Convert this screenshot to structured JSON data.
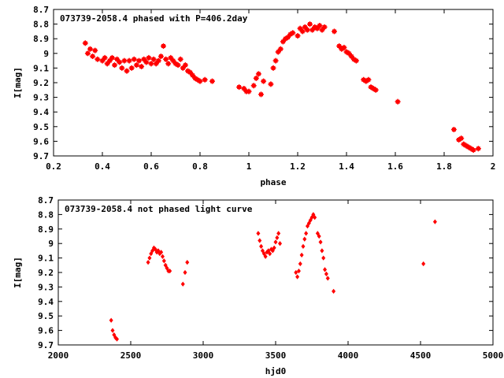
{
  "chart_data": [
    {
      "type": "scatter",
      "title": "073739-2058.4 phased with P=406.2day",
      "xlabel": "phase",
      "ylabel": "I[mag]",
      "xlim": [
        0.2,
        2
      ],
      "ylim": [
        8.7,
        9.7
      ],
      "y_inverted": true,
      "grid": false,
      "color": "#ff0000",
      "x_ticks": [
        "0.2",
        "0.4",
        "0.6",
        "0.8",
        "1",
        "1.2",
        "1.4",
        "1.6",
        "1.8",
        "2"
      ],
      "y_ticks": [
        "8.7",
        "8.8",
        "8.9",
        "9",
        "9.1",
        "9.2",
        "9.3",
        "9.4",
        "9.5",
        "9.6",
        "9.7"
      ],
      "points": [
        [
          0.33,
          8.93
        ],
        [
          0.34,
          9.0
        ],
        [
          0.35,
          8.97
        ],
        [
          0.36,
          9.02
        ],
        [
          0.37,
          8.98
        ],
        [
          0.38,
          9.04
        ],
        [
          0.4,
          9.05
        ],
        [
          0.41,
          9.03
        ],
        [
          0.42,
          9.07
        ],
        [
          0.43,
          9.05
        ],
        [
          0.44,
          9.03
        ],
        [
          0.45,
          9.08
        ],
        [
          0.46,
          9.04
        ],
        [
          0.47,
          9.06
        ],
        [
          0.48,
          9.1
        ],
        [
          0.49,
          9.05
        ],
        [
          0.5,
          9.12
        ],
        [
          0.51,
          9.05
        ],
        [
          0.52,
          9.1
        ],
        [
          0.53,
          9.04
        ],
        [
          0.54,
          9.08
        ],
        [
          0.55,
          9.05
        ],
        [
          0.56,
          9.09
        ],
        [
          0.57,
          9.04
        ],
        [
          0.58,
          9.06
        ],
        [
          0.59,
          9.03
        ],
        [
          0.6,
          9.07
        ],
        [
          0.61,
          9.04
        ],
        [
          0.62,
          9.07
        ],
        [
          0.63,
          9.05
        ],
        [
          0.64,
          9.02
        ],
        [
          0.65,
          8.95
        ],
        [
          0.66,
          9.04
        ],
        [
          0.67,
          9.07
        ],
        [
          0.68,
          9.03
        ],
        [
          0.69,
          9.05
        ],
        [
          0.7,
          9.07
        ],
        [
          0.71,
          9.08
        ],
        [
          0.72,
          9.04
        ],
        [
          0.73,
          9.1
        ],
        [
          0.74,
          9.08
        ],
        [
          0.75,
          9.12
        ],
        [
          0.76,
          9.13
        ],
        [
          0.77,
          9.15
        ],
        [
          0.78,
          9.17
        ],
        [
          0.79,
          9.18
        ],
        [
          0.8,
          9.19
        ],
        [
          0.82,
          9.18
        ],
        [
          0.85,
          9.19
        ],
        [
          0.96,
          9.23
        ],
        [
          0.98,
          9.24
        ],
        [
          0.99,
          9.26
        ],
        [
          1.0,
          9.26
        ],
        [
          1.02,
          9.22
        ],
        [
          1.03,
          9.17
        ],
        [
          1.04,
          9.14
        ],
        [
          1.05,
          9.28
        ],
        [
          1.06,
          9.19
        ],
        [
          1.09,
          9.21
        ],
        [
          1.1,
          9.1
        ],
        [
          1.11,
          9.05
        ],
        [
          1.12,
          8.99
        ],
        [
          1.13,
          8.97
        ],
        [
          1.14,
          8.92
        ],
        [
          1.15,
          8.9
        ],
        [
          1.16,
          8.89
        ],
        [
          1.17,
          8.87
        ],
        [
          1.18,
          8.86
        ],
        [
          1.2,
          8.88
        ],
        [
          1.21,
          8.83
        ],
        [
          1.22,
          8.85
        ],
        [
          1.23,
          8.82
        ],
        [
          1.24,
          8.84
        ],
        [
          1.25,
          8.8
        ],
        [
          1.26,
          8.84
        ],
        [
          1.27,
          8.82
        ],
        [
          1.28,
          8.83
        ],
        [
          1.29,
          8.81
        ],
        [
          1.3,
          8.84
        ],
        [
          1.31,
          8.82
        ],
        [
          1.35,
          8.85
        ],
        [
          1.37,
          8.95
        ],
        [
          1.38,
          8.97
        ],
        [
          1.39,
          8.96
        ],
        [
          1.4,
          8.99
        ],
        [
          1.41,
          9.0
        ],
        [
          1.42,
          9.02
        ],
        [
          1.43,
          9.04
        ],
        [
          1.44,
          9.05
        ],
        [
          1.47,
          9.18
        ],
        [
          1.48,
          9.19
        ],
        [
          1.49,
          9.18
        ],
        [
          1.5,
          9.23
        ],
        [
          1.51,
          9.24
        ],
        [
          1.52,
          9.25
        ],
        [
          1.61,
          9.33
        ],
        [
          1.84,
          9.52
        ],
        [
          1.86,
          9.59
        ],
        [
          1.87,
          9.58
        ],
        [
          1.88,
          9.62
        ],
        [
          1.89,
          9.63
        ],
        [
          1.9,
          9.64
        ],
        [
          1.91,
          9.65
        ],
        [
          1.92,
          9.66
        ],
        [
          1.94,
          9.65
        ]
      ]
    },
    {
      "type": "scatter",
      "title": "073739-2058.4 not phased light curve",
      "xlabel": "hjd0",
      "ylabel": "I[mag]",
      "xlim": [
        2000,
        5000
      ],
      "ylim": [
        8.7,
        9.7
      ],
      "y_inverted": true,
      "grid": false,
      "color": "#ff0000",
      "x_ticks": [
        "2000",
        "2500",
        "3000",
        "3500",
        "4000",
        "4500",
        "5000"
      ],
      "y_ticks": [
        "8.7",
        "8.8",
        "8.9",
        "9",
        "9.1",
        "9.2",
        "9.3",
        "9.4",
        "9.5",
        "9.6",
        "9.7"
      ],
      "points": [
        [
          2365,
          9.53
        ],
        [
          2375,
          9.6
        ],
        [
          2385,
          9.63
        ],
        [
          2395,
          9.65
        ],
        [
          2405,
          9.66
        ],
        [
          2620,
          9.13
        ],
        [
          2630,
          9.1
        ],
        [
          2640,
          9.07
        ],
        [
          2650,
          9.05
        ],
        [
          2660,
          9.03
        ],
        [
          2670,
          9.04
        ],
        [
          2680,
          9.06
        ],
        [
          2690,
          9.05
        ],
        [
          2700,
          9.07
        ],
        [
          2710,
          9.06
        ],
        [
          2720,
          9.09
        ],
        [
          2730,
          9.12
        ],
        [
          2740,
          9.15
        ],
        [
          2750,
          9.17
        ],
        [
          2760,
          9.19
        ],
        [
          2770,
          9.19
        ],
        [
          2860,
          9.28
        ],
        [
          2875,
          9.2
        ],
        [
          2890,
          9.13
        ],
        [
          3380,
          8.93
        ],
        [
          3390,
          8.98
        ],
        [
          3400,
          9.02
        ],
        [
          3410,
          9.05
        ],
        [
          3420,
          9.07
        ],
        [
          3430,
          9.09
        ],
        [
          3440,
          9.06
        ],
        [
          3450,
          9.05
        ],
        [
          3460,
          9.07
        ],
        [
          3470,
          9.04
        ],
        [
          3480,
          9.05
        ],
        [
          3490,
          9.03
        ],
        [
          3500,
          8.99
        ],
        [
          3510,
          8.96
        ],
        [
          3520,
          8.93
        ],
        [
          3530,
          9.0
        ],
        [
          3640,
          9.2
        ],
        [
          3650,
          9.23
        ],
        [
          3660,
          9.19
        ],
        [
          3670,
          9.14
        ],
        [
          3680,
          9.08
        ],
        [
          3690,
          9.02
        ],
        [
          3700,
          8.97
        ],
        [
          3710,
          8.93
        ],
        [
          3720,
          8.88
        ],
        [
          3730,
          8.86
        ],
        [
          3740,
          8.84
        ],
        [
          3750,
          8.82
        ],
        [
          3760,
          8.8
        ],
        [
          3770,
          8.82
        ],
        [
          3790,
          8.93
        ],
        [
          3800,
          8.95
        ],
        [
          3810,
          8.99
        ],
        [
          3820,
          9.05
        ],
        [
          3830,
          9.1
        ],
        [
          3840,
          9.18
        ],
        [
          3850,
          9.21
        ],
        [
          3860,
          9.24
        ],
        [
          3900,
          9.33
        ],
        [
          4520,
          9.14
        ],
        [
          4600,
          8.85
        ]
      ]
    }
  ]
}
